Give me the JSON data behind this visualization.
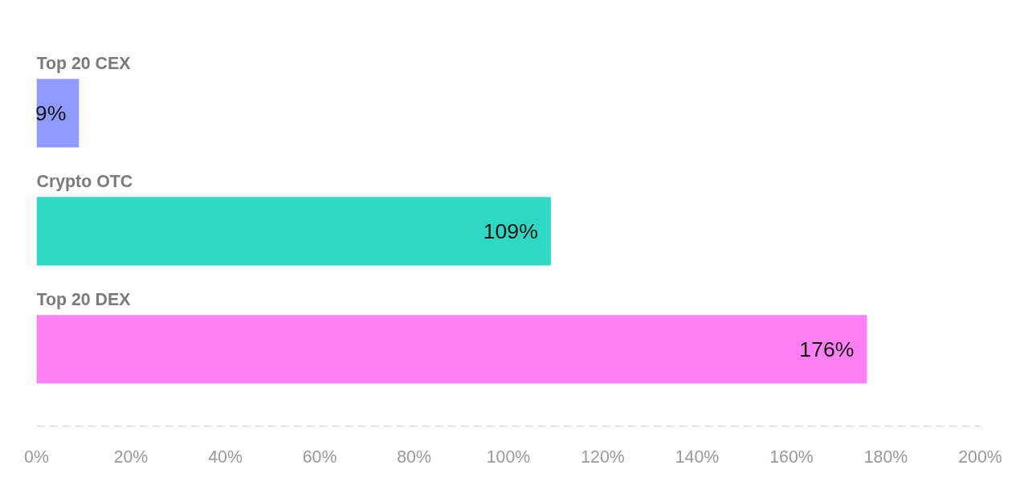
{
  "chart_data": {
    "type": "bar",
    "orientation": "horizontal",
    "categories": [
      "Top 20 CEX",
      "Crypto OTC",
      "Top 20 DEX"
    ],
    "values": [
      9,
      109,
      176
    ],
    "colors": [
      "#8f9bff",
      "#2ed8c3",
      "#ff80f5"
    ],
    "value_labels": [
      "9%",
      "109%",
      "176%"
    ],
    "xlim": [
      0,
      200
    ],
    "xticks": [
      {
        "value": 0,
        "label": "0%"
      },
      {
        "value": 20,
        "label": "20%"
      },
      {
        "value": 40,
        "label": "40%"
      },
      {
        "value": 60,
        "label": "60%"
      },
      {
        "value": 80,
        "label": "80%"
      },
      {
        "value": 100,
        "label": "100%"
      },
      {
        "value": 120,
        "label": "120%"
      },
      {
        "value": 140,
        "label": "140%"
      },
      {
        "value": 160,
        "label": "160%"
      },
      {
        "value": 180,
        "label": "180%"
      },
      {
        "value": 200,
        "label": "200%"
      }
    ],
    "tick_labels": "x",
    "grid": false
  }
}
